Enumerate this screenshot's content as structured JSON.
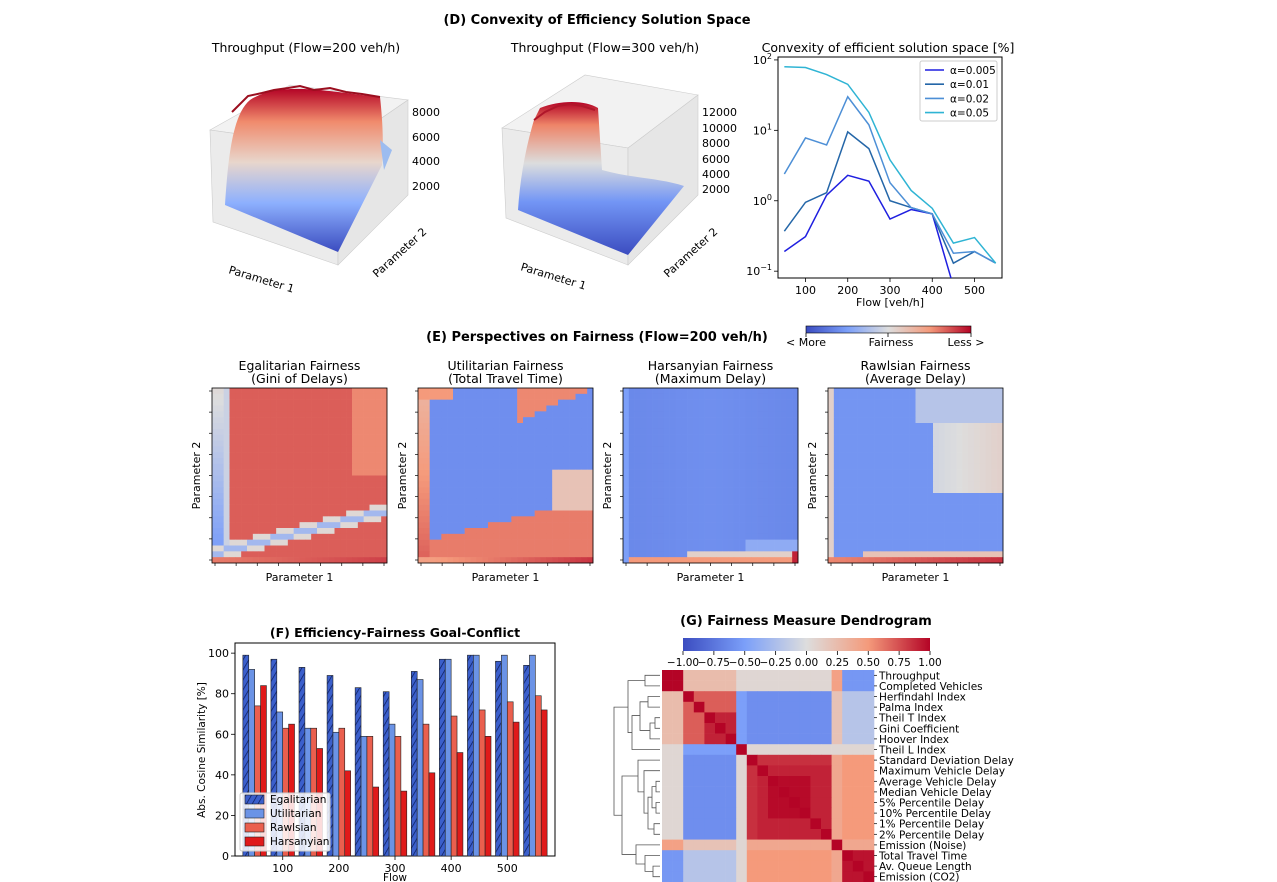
{
  "section_titles": {
    "d": "(D) Convexity of Efficiency Solution Space",
    "e": "(E) Perspectives on Fairness (Flow=200 veh/h)",
    "f": "(F) Efficiency-Fairness Goal-Conflict",
    "g": "(G) Fairness Measure Dendrogram"
  },
  "chart_data": [
    {
      "type": "surface3d",
      "title": "Throughput (Flow=200 veh/h)",
      "xlabel": "Parameter 1",
      "ylabel": "Parameter 2",
      "zticks": [
        "8000",
        "6000",
        "4000",
        "2000"
      ],
      "colormap": "coolwarm"
    },
    {
      "type": "surface3d",
      "title": "Throughput (Flow=300 veh/h)",
      "xlabel": "Parameter 1",
      "ylabel": "Parameter 2",
      "zticks": [
        "12000",
        "10000",
        "8000",
        "6000",
        "4000",
        "2000"
      ],
      "colormap": "coolwarm"
    },
    {
      "type": "line",
      "title": "Convexity of efficient solution space [%]",
      "xlabel": "Flow [veh/h]",
      "ylabel": "",
      "yscale": "log",
      "ylim": [
        0.08,
        110
      ],
      "xlim": [
        35,
        565
      ],
      "xticks": [
        "100",
        "200",
        "300",
        "400",
        "500"
      ],
      "yticks": [
        "10^2",
        "10^1",
        "10^0",
        "10^−1"
      ],
      "legend_position": "upper right",
      "x": [
        50,
        100,
        150,
        200,
        250,
        300,
        350,
        400,
        450,
        500,
        550
      ],
      "series": [
        {
          "name": "α=0.005",
          "color": "#1f1fe0",
          "values": [
            0.19,
            0.31,
            1.2,
            2.3,
            1.9,
            0.55,
            0.75,
            0.65,
            0.061,
            0.061,
            0.061
          ]
        },
        {
          "name": "α=0.01",
          "color": "#2466a8",
          "values": [
            0.37,
            0.95,
            1.3,
            9.5,
            5.5,
            1.0,
            0.8,
            0.65,
            0.13,
            0.19,
            0.13
          ]
        },
        {
          "name": "α=0.02",
          "color": "#4d8fd6",
          "values": [
            2.4,
            7.8,
            6.2,
            30,
            12,
            1.8,
            0.8,
            0.65,
            0.18,
            0.19,
            0.13
          ]
        },
        {
          "name": "α=0.05",
          "color": "#2fb4d4",
          "values": [
            80,
            78,
            62,
            45,
            18,
            3.8,
            1.4,
            0.78,
            0.25,
            0.3,
            0.13
          ]
        }
      ]
    },
    {
      "type": "heatmap",
      "title_line1": "Egalitarian Fairness",
      "title_line2": "(Gini of Delays)",
      "xlabel": "Parameter 1",
      "ylabel": "Parameter 2",
      "colormap": "coolwarm"
    },
    {
      "type": "heatmap",
      "title_line1": "Utilitarian Fairness",
      "title_line2": "(Total Travel Time)",
      "xlabel": "Parameter 1",
      "ylabel": "Parameter 2",
      "colormap": "coolwarm"
    },
    {
      "type": "heatmap",
      "title_line1": "Harsanyian Fairness",
      "title_line2": "(Maximum Delay)",
      "xlabel": "Parameter 1",
      "ylabel": "Parameter 2",
      "colormap": "coolwarm"
    },
    {
      "type": "heatmap",
      "title_line1": "Rawlsian Fairness",
      "title_line2": "(Average Delay)",
      "xlabel": "Parameter 1",
      "ylabel": "Parameter 2",
      "colormap": "coolwarm"
    },
    {
      "type": "bar",
      "title": "(F) Efficiency-Fairness Goal-Conflict",
      "xlabel": "Flow",
      "ylabel": "Abs. Cosine Similarity [%]",
      "ylim": [
        0,
        105
      ],
      "xlim": [
        15,
        585
      ],
      "yticks": [
        "0",
        "20",
        "40",
        "60",
        "80",
        "100"
      ],
      "xticks": [
        "100",
        "200",
        "300",
        "400",
        "500"
      ],
      "legend_position": "lower left",
      "categories": [
        50,
        100,
        150,
        200,
        250,
        300,
        350,
        400,
        450,
        500,
        550
      ],
      "series": [
        {
          "name": "Egalitarian",
          "color": "#3b5fcc",
          "hatch": true,
          "values": [
            99,
            97,
            93,
            89,
            83,
            81,
            91,
            97,
            99,
            96,
            94
          ]
        },
        {
          "name": "Utilitarian",
          "color": "#6b93e6",
          "hatch": false,
          "values": [
            92,
            71,
            63,
            61,
            59,
            65,
            87,
            97,
            99,
            99,
            99
          ]
        },
        {
          "name": "Rawlsian",
          "color": "#ea5f4e",
          "hatch": false,
          "values": [
            74,
            63,
            63,
            63,
            59,
            59,
            65,
            69,
            72,
            76,
            79
          ]
        },
        {
          "name": "Harsanyian",
          "color": "#e01a1a",
          "hatch": false,
          "values": [
            84,
            65,
            53,
            42,
            34,
            32,
            41,
            51,
            59,
            66,
            72
          ]
        }
      ]
    },
    {
      "type": "heatmap",
      "title": "(G) Fairness Measure Dendrogram",
      "colorbar_ticks": [
        "−1.00",
        "−0.75",
        "−0.50",
        "−0.25",
        "0.00",
        "0.25",
        "0.50",
        "0.75",
        "1.00"
      ],
      "row_labels": [
        "Throughput",
        "Completed Vehicles",
        "Herfindahl Index",
        "Palma Index",
        "Theil T Index",
        "Gini Coefficient",
        "Hoover Index",
        "Theil L Index",
        "Standard Deviation Delay",
        "Maximum Vehicle Delay",
        "Average Vehicle Delay",
        "Median Vehicle Delay",
        "5% Percentile Delay",
        "10% Percentile Delay",
        "1% Percentile Delay",
        "2% Percentile Delay",
        "Emission (Noise)",
        "Total Travel Time",
        "Av. Queue Length",
        "Emission (CO2)"
      ]
    }
  ],
  "fairness_colorbar": {
    "left_label": "< More",
    "center_label": "Fairness",
    "right_label": "Less >"
  }
}
